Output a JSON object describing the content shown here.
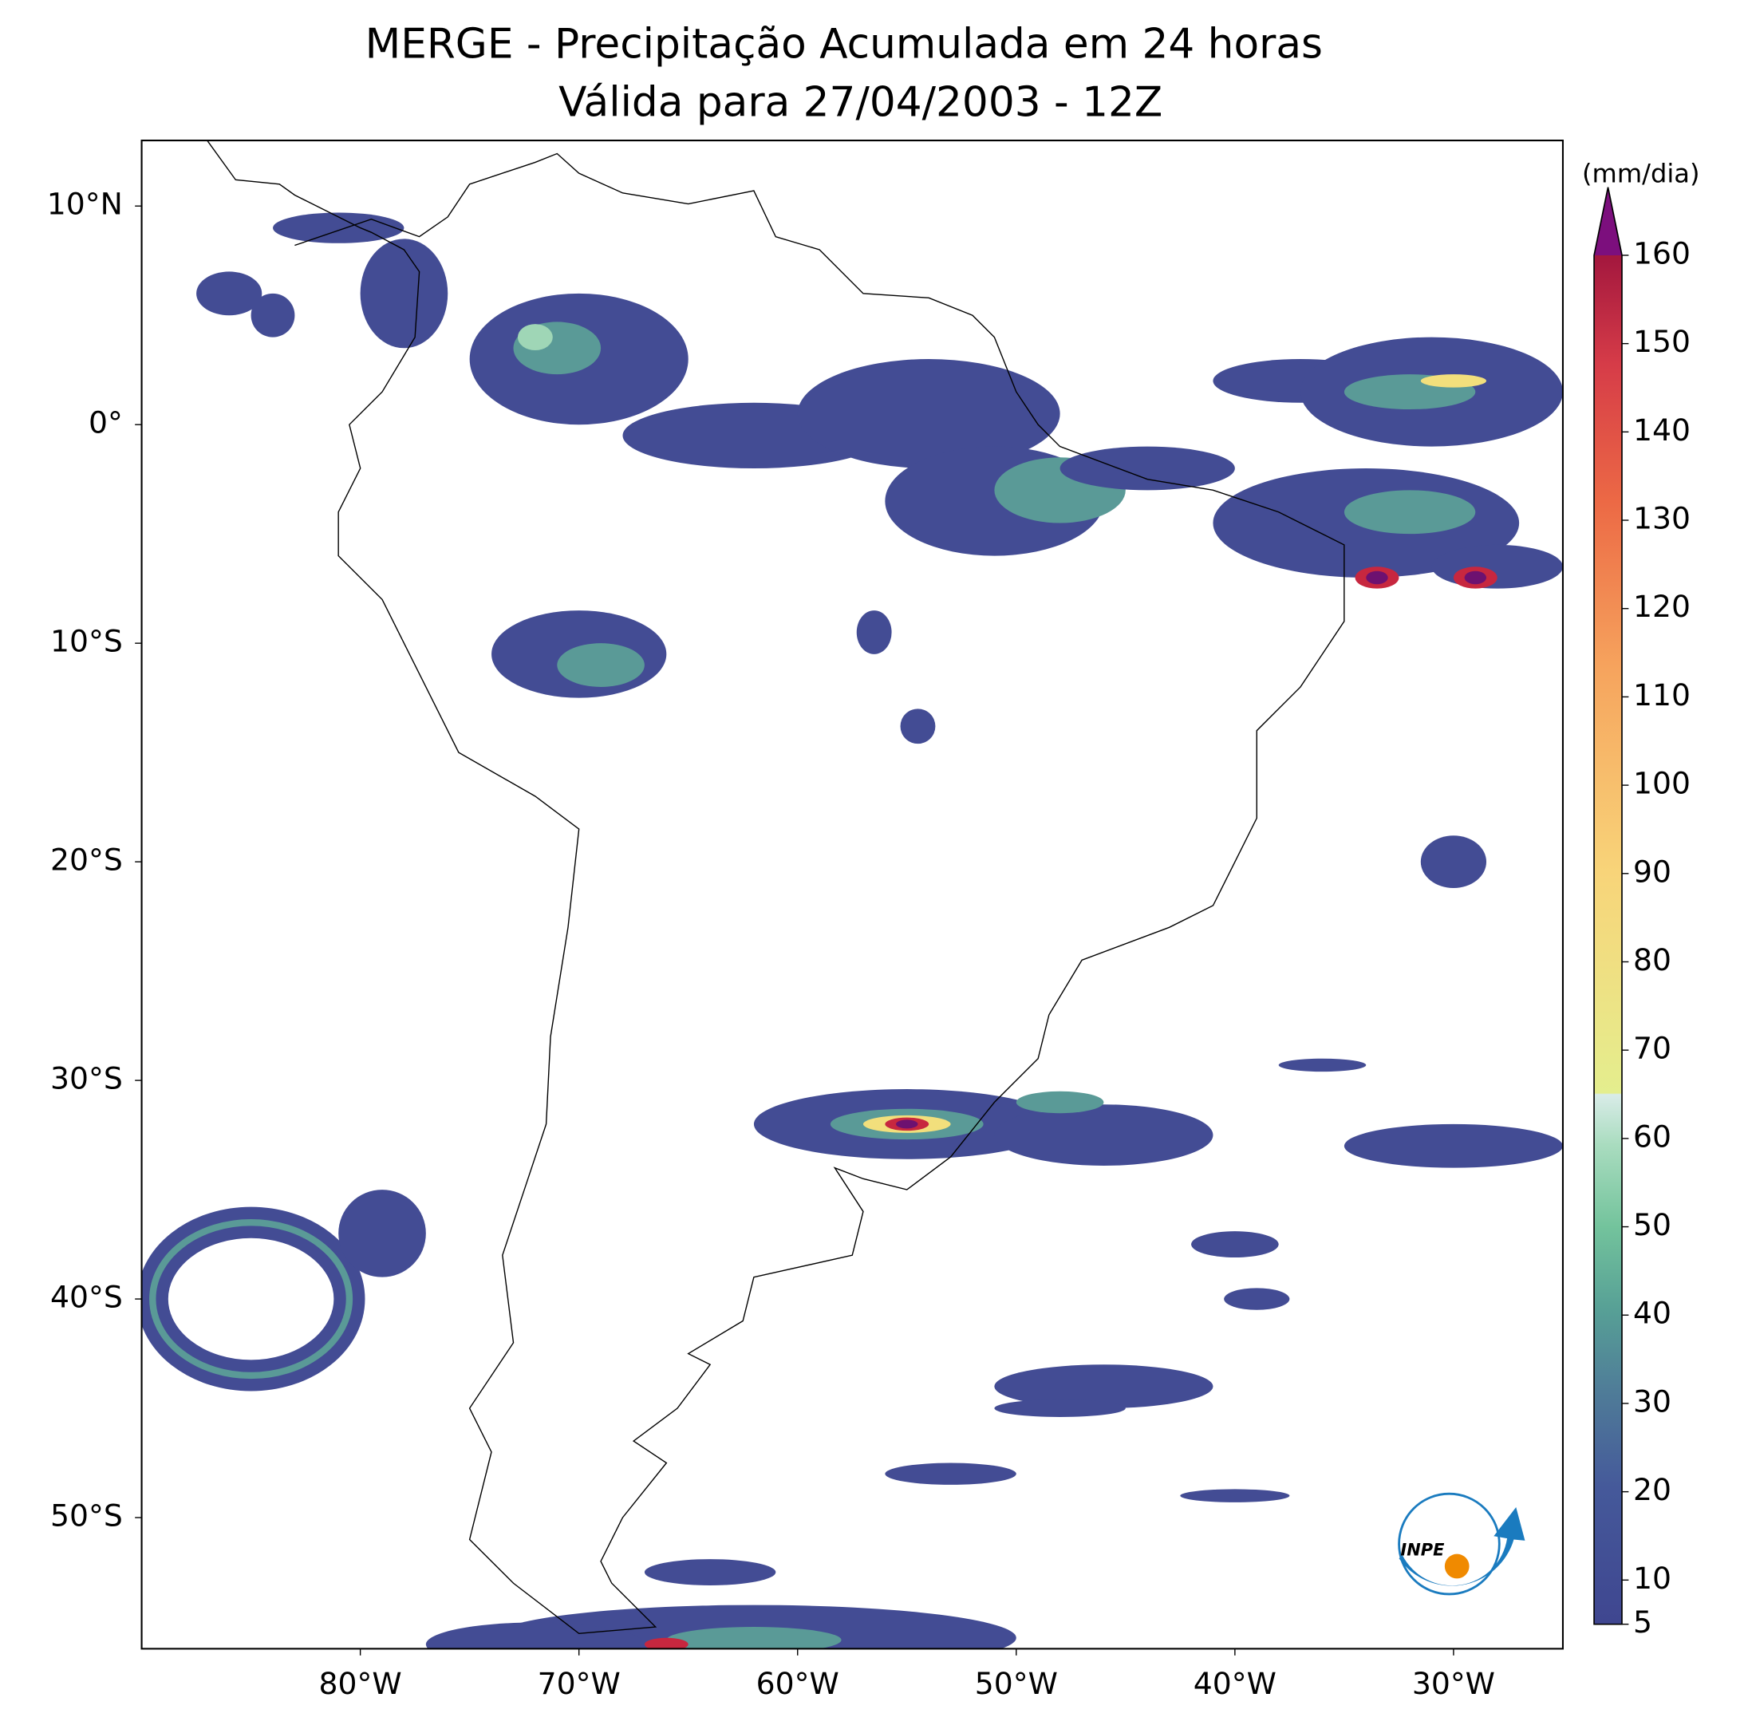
{
  "title": "MERGE - Precipitação Acumulada em 24 horas",
  "subtitle": "Válida para 27/04/2003 - 12Z",
  "map": {
    "xlim": [
      -90,
      -25
    ],
    "ylim": [
      -56,
      13
    ],
    "xticks": [
      {
        "value": -80,
        "label": "80°W"
      },
      {
        "value": -70,
        "label": "70°W"
      },
      {
        "value": -60,
        "label": "60°W"
      },
      {
        "value": -50,
        "label": "50°W"
      },
      {
        "value": -40,
        "label": "40°W"
      },
      {
        "value": -30,
        "label": "30°W"
      }
    ],
    "yticks": [
      {
        "value": 10,
        "label": "10°N"
      },
      {
        "value": 0,
        "label": "0°"
      },
      {
        "value": -10,
        "label": "10°S"
      },
      {
        "value": -20,
        "label": "20°S"
      },
      {
        "value": -30,
        "label": "30°S"
      },
      {
        "value": -40,
        "label": "40°S"
      },
      {
        "value": -50,
        "label": "50°S"
      }
    ]
  },
  "colorbar": {
    "label": "(mm/dia)",
    "lim": [
      5,
      160
    ],
    "ticks": [
      5,
      10,
      20,
      30,
      40,
      50,
      60,
      70,
      80,
      90,
      100,
      110,
      120,
      130,
      140,
      150,
      160
    ]
  },
  "logo": "INPE"
}
